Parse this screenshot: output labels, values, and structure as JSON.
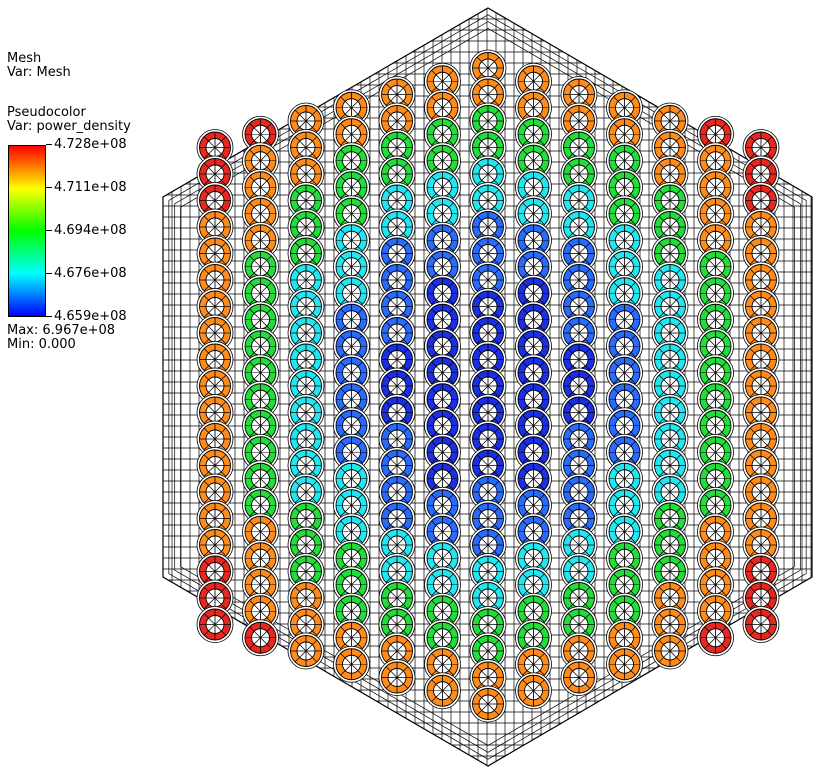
{
  "legend": {
    "mesh_title": "Mesh",
    "mesh_var": "Var: Mesh",
    "pc_title": "Pseudocolor",
    "pc_var": "Var: power_density",
    "ticks": [
      "4.728e+08",
      "4.711e+08",
      "4.694e+08",
      "4.676e+08",
      "4.659e+08"
    ],
    "max_label": "Max:  6.967e+08",
    "min_label": "Min:  0.000",
    "colormap": [
      "#ff0000",
      "#ffff00",
      "#00ff00",
      "#00ffff",
      "#0000ff"
    ]
  },
  "colors": {
    "red": "#e8281e",
    "orange": "#ff8c1a",
    "green": "#22dd3a",
    "cyan": "#22e6f0",
    "lightblue": "#2a6bff",
    "blue": "#1a2fe6",
    "mesh_line": "#000000"
  }
}
